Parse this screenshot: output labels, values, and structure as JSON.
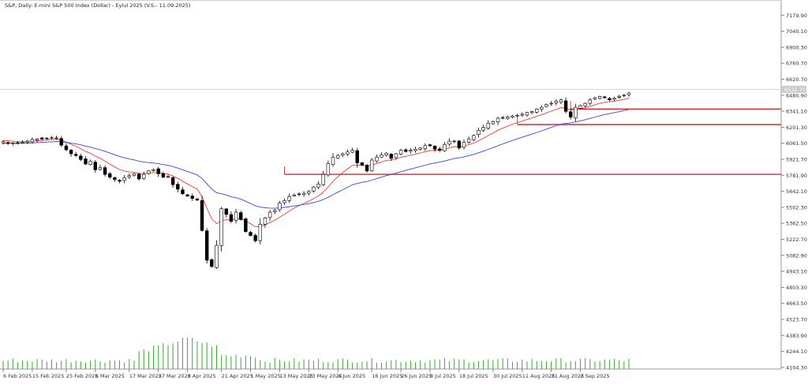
{
  "chart_data": {
    "type": "candlestick",
    "title": "S&P, Daily:  E-mini S&P 500 Index (Dollar) - Eylul 2025 (V.S.- 11.09.2025)",
    "y_ticks": [
      "7179.90",
      "7040.10",
      "6900.30",
      "6760.70",
      "6620.70",
      "6480.90",
      "6341.10",
      "6201.30",
      "6061.50",
      "5921.70",
      "5781.90",
      "5642.10",
      "5502.30",
      "5362.50",
      "5222.70",
      "5082.90",
      "4943.10",
      "4803.30",
      "4663.50",
      "4523.70",
      "4383.90",
      "4244.10",
      "4104.30"
    ],
    "ylim": [
      4090,
      7230
    ],
    "current_price_label": "6532.75",
    "current_price": 6532.75,
    "x_labels": [
      "6 Feb 2025",
      "15 Feb 2025",
      "25 Feb 2025",
      "6 Mar 2025",
      "17 Mar 2025",
      "27 Mar 2025",
      "8 Apr 2025",
      "21 Apr 2025",
      "1 May 2025",
      "13 May 2025",
      "23 May 2025",
      "4 Jun 2025",
      "16 Jun 2025",
      "26 Jun 2025",
      "8 Jul 2025",
      "18 Jul 2025",
      "30 Jul 2025",
      "11 Aug 2025",
      "21 Aug 2025",
      "2 Sep 2025"
    ],
    "x_label_positions": [
      0,
      6,
      13,
      19,
      26,
      32,
      38,
      45,
      51,
      57,
      63,
      69,
      76,
      82,
      88,
      94,
      101,
      107,
      113,
      119
    ],
    "num_bars": 130,
    "closes": [
      6075,
      6060,
      6065,
      6060,
      6072,
      6080,
      6095,
      6100,
      6098,
      6105,
      6110,
      6108,
      6045,
      6005,
      5970,
      5955,
      5920,
      5880,
      5905,
      5830,
      5850,
      5790,
      5765,
      5745,
      5730,
      5760,
      5780,
      5795,
      5750,
      5790,
      5820,
      5830,
      5795,
      5765,
      5770,
      5700,
      5660,
      5620,
      5600,
      5580,
      5565,
      5300,
      5040,
      4985,
      5170,
      5490,
      5440,
      5380,
      5460,
      5395,
      5290,
      5255,
      5210,
      5355,
      5410,
      5460,
      5475,
      5540,
      5560,
      5595,
      5610,
      5615,
      5625,
      5640,
      5680,
      5705,
      5790,
      5885,
      5940,
      5955,
      5970,
      5985,
      6000,
      5890,
      5870,
      5820,
      5915,
      5940,
      5960,
      5975,
      5930,
      5970,
      6000,
      5990,
      6000,
      6010,
      6020,
      6040,
      6040,
      6010,
      6000,
      6050,
      6080,
      6080,
      6020,
      6070,
      6100,
      6130,
      6175,
      6200,
      6235,
      6250,
      6280,
      6285,
      6290,
      6300,
      6305,
      6315,
      6330,
      6340,
      6360,
      6375,
      6400,
      6410,
      6430,
      6440,
      6340,
      6290,
      6375,
      6390,
      6410,
      6440,
      6460,
      6470,
      6460,
      6440,
      6455,
      6470,
      6480,
      6500
    ]
  },
  "moving_averages": [
    {
      "color": "#ee3b2b"
    },
    {
      "color": "#4040dd"
    }
  ],
  "colors": {
    "up": "#ffffff",
    "down": "#000000",
    "wick": "#000000",
    "volume": "#3aa832",
    "levels": "#d83b3b"
  },
  "levels": [
    6360,
    6225,
    5790
  ]
}
